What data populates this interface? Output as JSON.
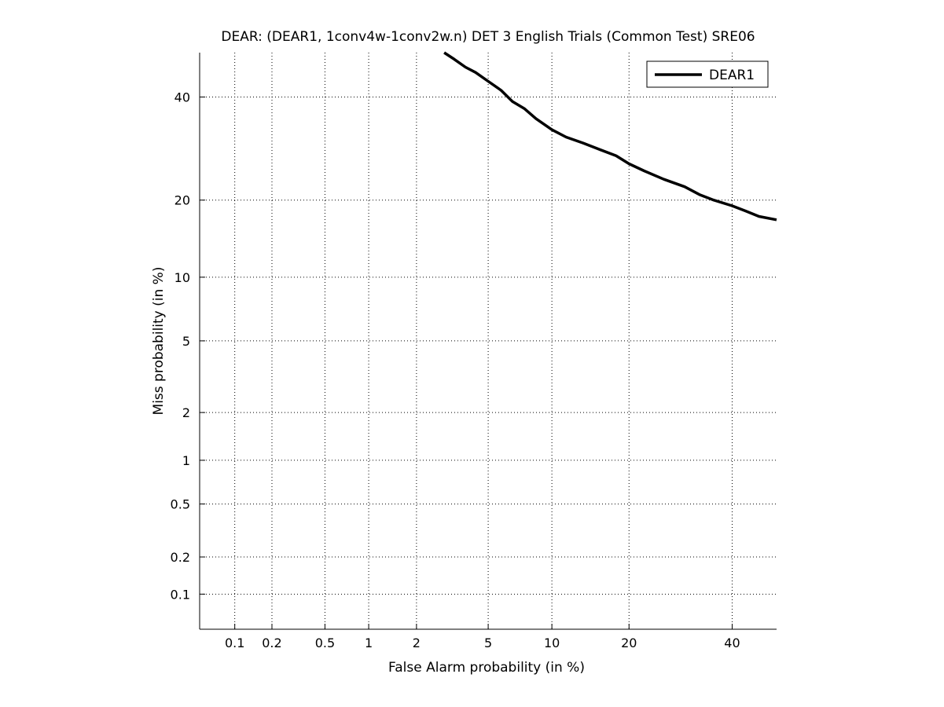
{
  "chart_data": {
    "type": "line",
    "title": "DEAR: (DEAR1, 1conv4w-1conv2w.n) DET 3 English Trials (Common Test) SRE06",
    "xlabel": "False Alarm probability (in %)",
    "ylabel": "Miss probability (in %)",
    "xscale": "probit",
    "yscale": "probit",
    "xlim": [
      0.05,
      50
    ],
    "ylim": [
      0.05,
      50
    ],
    "x_ticks": [
      0.1,
      0.2,
      0.5,
      1,
      2,
      5,
      10,
      20,
      40
    ],
    "x_tick_labels": [
      "0.1",
      "0.2",
      "0.5",
      "1",
      "2",
      "5",
      "10",
      "20",
      "40"
    ],
    "y_ticks": [
      0.1,
      0.2,
      0.5,
      1,
      2,
      5,
      10,
      20,
      40
    ],
    "y_tick_labels": [
      "0.1",
      "0.2",
      "0.5",
      "1",
      "2",
      "5",
      "10",
      "20",
      "40"
    ],
    "grid": true,
    "legend_position": "top-right",
    "series": [
      {
        "name": "DEAR1",
        "color": "#000000",
        "x": [
          2.9,
          3.3,
          3.8,
          4.3,
          5.0,
          5.8,
          6.6,
          7.5,
          8.5,
          10.0,
          11.5,
          13.5,
          15.5,
          18.0,
          20.0,
          22.5,
          26.0,
          30.0,
          33.0,
          36.0,
          40.0,
          43.0,
          46.0,
          50.0
        ],
        "y": [
          50.0,
          48.5,
          46.7,
          45.5,
          43.5,
          41.5,
          39.0,
          37.5,
          35.3,
          33.0,
          31.5,
          30.3,
          29.1,
          27.8,
          26.3,
          25.0,
          23.5,
          22.2,
          20.9,
          20.0,
          19.1,
          18.3,
          17.5,
          17.0
        ]
      }
    ]
  }
}
